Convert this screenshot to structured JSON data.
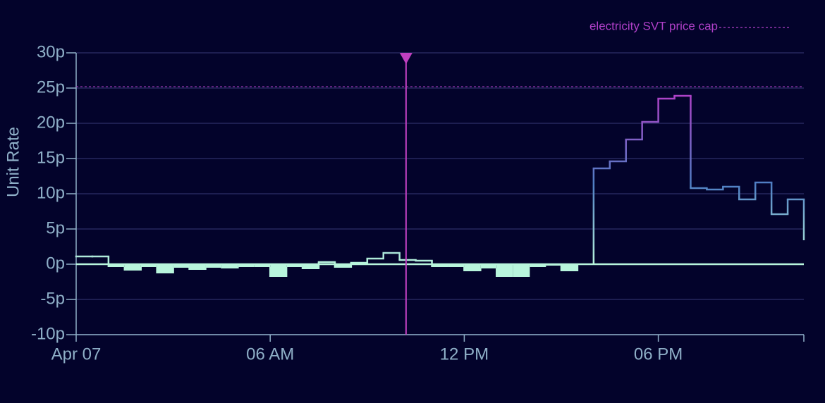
{
  "chart_data": {
    "type": "step",
    "y_label": "Unit Rate",
    "x": [
      0,
      0.5,
      1,
      1.5,
      2,
      2.5,
      3,
      3.5,
      4,
      4.5,
      5,
      5.5,
      6,
      6.5,
      7,
      7.5,
      8,
      8.5,
      9,
      9.5,
      10,
      10.5,
      11,
      11.5,
      12,
      12.5,
      13,
      13.5,
      14,
      14.5,
      15,
      15.5,
      16,
      16.5,
      17,
      17.5,
      18,
      18.5,
      19,
      19.5,
      20,
      20.5,
      21,
      21.5,
      22,
      22.5
    ],
    "values": [
      1.1,
      1.1,
      -0.4,
      -0.9,
      -0.4,
      -1.3,
      -0.5,
      -0.8,
      -0.5,
      -0.6,
      -0.4,
      -0.4,
      -1.8,
      -0.4,
      -0.7,
      0.3,
      -0.5,
      0.2,
      0.8,
      1.6,
      0.6,
      0.5,
      -0.4,
      -0.4,
      -1.0,
      -0.6,
      -1.8,
      -1.8,
      -0.4,
      -0.2,
      -1.0,
      -0.1,
      13.6,
      14.6,
      17.7,
      20.2,
      23.5,
      23.9,
      10.8,
      10.6,
      11.0,
      9.2,
      11.6,
      7.1,
      9.2,
      3.4
    ],
    "color": "#b8f5dc",
    "gradient": [
      "#b8f5dc",
      "#4f7fc4",
      "#b83cc8"
    ],
    "xlim": [
      0,
      22.5
    ],
    "xticks": [
      {
        "value": 0,
        "label": "Apr 07"
      },
      {
        "value": 6,
        "label": "06 AM"
      },
      {
        "value": 12,
        "label": "12 PM"
      },
      {
        "value": 18,
        "label": "06 PM"
      }
    ],
    "ylim": [
      -10,
      30
    ],
    "yticks": [
      {
        "value": -10,
        "label": "-10p"
      },
      {
        "value": -5,
        "label": "-5p"
      },
      {
        "value": 0,
        "label": "0p"
      },
      {
        "value": 5,
        "label": "5p"
      },
      {
        "value": 10,
        "label": "10p"
      },
      {
        "value": 15,
        "label": "15p"
      },
      {
        "value": 20,
        "label": "20p"
      },
      {
        "value": 25,
        "label": "25p"
      },
      {
        "value": 30,
        "label": "30p"
      }
    ],
    "grid": true,
    "price_cap": {
      "name": "electricity SVT price cap",
      "value": 25.2,
      "color": "#b040c8"
    },
    "now_marker": {
      "value": 10.2,
      "color": "#c040c0"
    }
  }
}
